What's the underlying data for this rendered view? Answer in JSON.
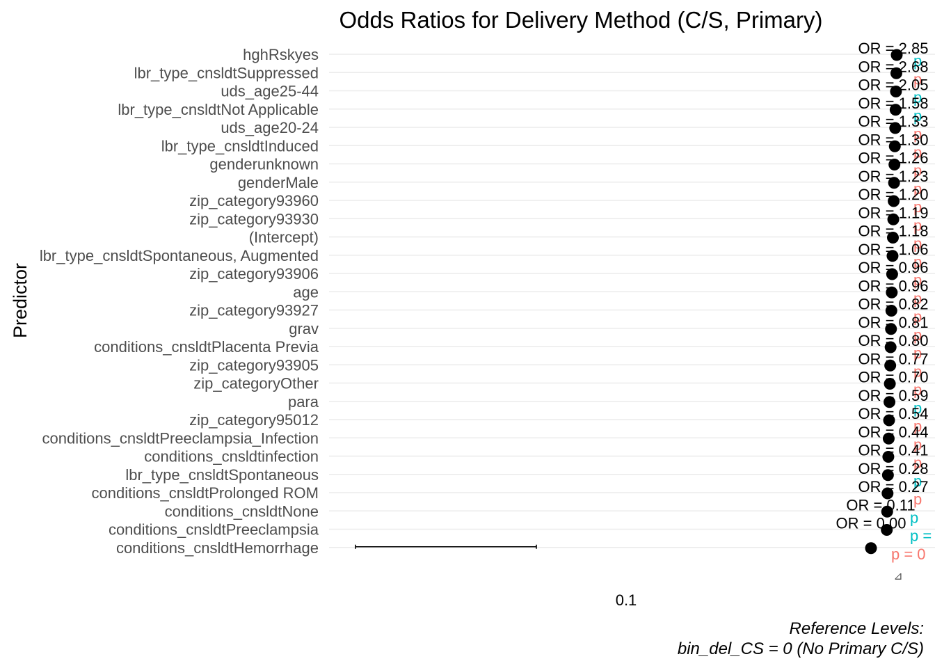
{
  "chart_data": {
    "type": "scatter",
    "title": "Odds Ratios for Delivery Method (C/S, Primary)",
    "ylabel": "Predictor",
    "xlabel": "",
    "x_scale": "log",
    "x_ticks": [
      "0.1"
    ],
    "legend": "none",
    "caption": [
      "Reference Levels:",
      "bin_del_CS = 0 (No Primary C/S)"
    ],
    "colors": {
      "significant": "#00BFC4",
      "not_significant": "#F8766D",
      "point": "#000000",
      "grid": "#EBEBEB"
    },
    "predictors": [
      {
        "name": "hghRskyes",
        "or_label": "OR = 2.85",
        "p_color": "significant",
        "p_label": "p"
      },
      {
        "name": "lbr_type_cnsldtSuppressed",
        "or_label": "OR = 2.68",
        "p_color": "not_significant",
        "p_label": "p"
      },
      {
        "name": "uds_age25-44",
        "or_label": "OR = 2.05",
        "p_color": "significant",
        "p_label": "p"
      },
      {
        "name": "lbr_type_cnsldtNot Applicable",
        "or_label": "OR = 1.58",
        "p_color": "significant",
        "p_label": "p"
      },
      {
        "name": "uds_age20-24",
        "or_label": "OR = 1.33",
        "p_color": "not_significant",
        "p_label": "p"
      },
      {
        "name": "lbr_type_cnsldtInduced",
        "or_label": "OR = 1.30",
        "p_color": "not_significant",
        "p_label": "p"
      },
      {
        "name": "genderunknown",
        "or_label": "OR = 1.26",
        "p_color": "not_significant",
        "p_label": "p"
      },
      {
        "name": "genderMale",
        "or_label": "OR = 1.23",
        "p_color": "not_significant",
        "p_label": "p"
      },
      {
        "name": "zip_category93960",
        "or_label": "OR = 1.20",
        "p_color": "not_significant",
        "p_label": "p"
      },
      {
        "name": "zip_category93930",
        "or_label": "OR = 1.19",
        "p_color": "not_significant",
        "p_label": "p"
      },
      {
        "name": "(Intercept)",
        "or_label": "OR = 1.18",
        "p_color": "not_significant",
        "p_label": "p"
      },
      {
        "name": "lbr_type_cnsldtSpontaneous, Augmented",
        "or_label": "OR = 1.06",
        "p_color": "not_significant",
        "p_label": "p"
      },
      {
        "name": "zip_category93906",
        "or_label": "OR = 0.96",
        "p_color": "not_significant",
        "p_label": "p"
      },
      {
        "name": "age",
        "or_label": "OR = 0.96",
        "p_color": "not_significant",
        "p_label": "p"
      },
      {
        "name": "zip_category93927",
        "or_label": "OR = 0.82",
        "p_color": "not_significant",
        "p_label": "p"
      },
      {
        "name": "grav",
        "or_label": "OR = 0.81",
        "p_color": "not_significant",
        "p_label": "p"
      },
      {
        "name": "conditions_cnsldtPlacenta Previa",
        "or_label": "OR = 0.80",
        "p_color": "not_significant",
        "p_label": "p"
      },
      {
        "name": "zip_category93905",
        "or_label": "OR = 0.77",
        "p_color": "not_significant",
        "p_label": "p"
      },
      {
        "name": "zip_categoryOther",
        "or_label": "OR = 0.70",
        "p_color": "not_significant",
        "p_label": "p"
      },
      {
        "name": "para",
        "or_label": "OR = 0.59",
        "p_color": "significant",
        "p_label": "p"
      },
      {
        "name": "zip_category95012",
        "or_label": "OR = 0.54",
        "p_color": "not_significant",
        "p_label": "p"
      },
      {
        "name": "conditions_cnsldtPreeclampsia_Infection",
        "or_label": "OR = 0.44",
        "p_color": "not_significant",
        "p_label": "p"
      },
      {
        "name": "conditions_cnsldtinfection",
        "or_label": "OR = 0.41",
        "p_color": "not_significant",
        "p_label": "p"
      },
      {
        "name": "lbr_type_cnsldtSpontaneous",
        "or_label": "OR = 0.28",
        "p_color": "significant",
        "p_label": "p"
      },
      {
        "name": "conditions_cnsldtProlonged ROM",
        "or_label": "OR = 0.27",
        "p_color": "not_significant",
        "p_label": "p"
      },
      {
        "name": "conditions_cnsldtNone",
        "or_label": "OR = 0.11",
        "p_color": "significant",
        "p_label": "p"
      },
      {
        "name": "conditions_cnsldtPreeclampsia",
        "or_label": "OR = 0.00",
        "p_color": "significant",
        "p_label": "p ="
      },
      {
        "name": "conditions_cnsldtHemorrhage",
        "or_label": "",
        "p_color": "not_significant",
        "p_label": "p = 0"
      }
    ]
  }
}
